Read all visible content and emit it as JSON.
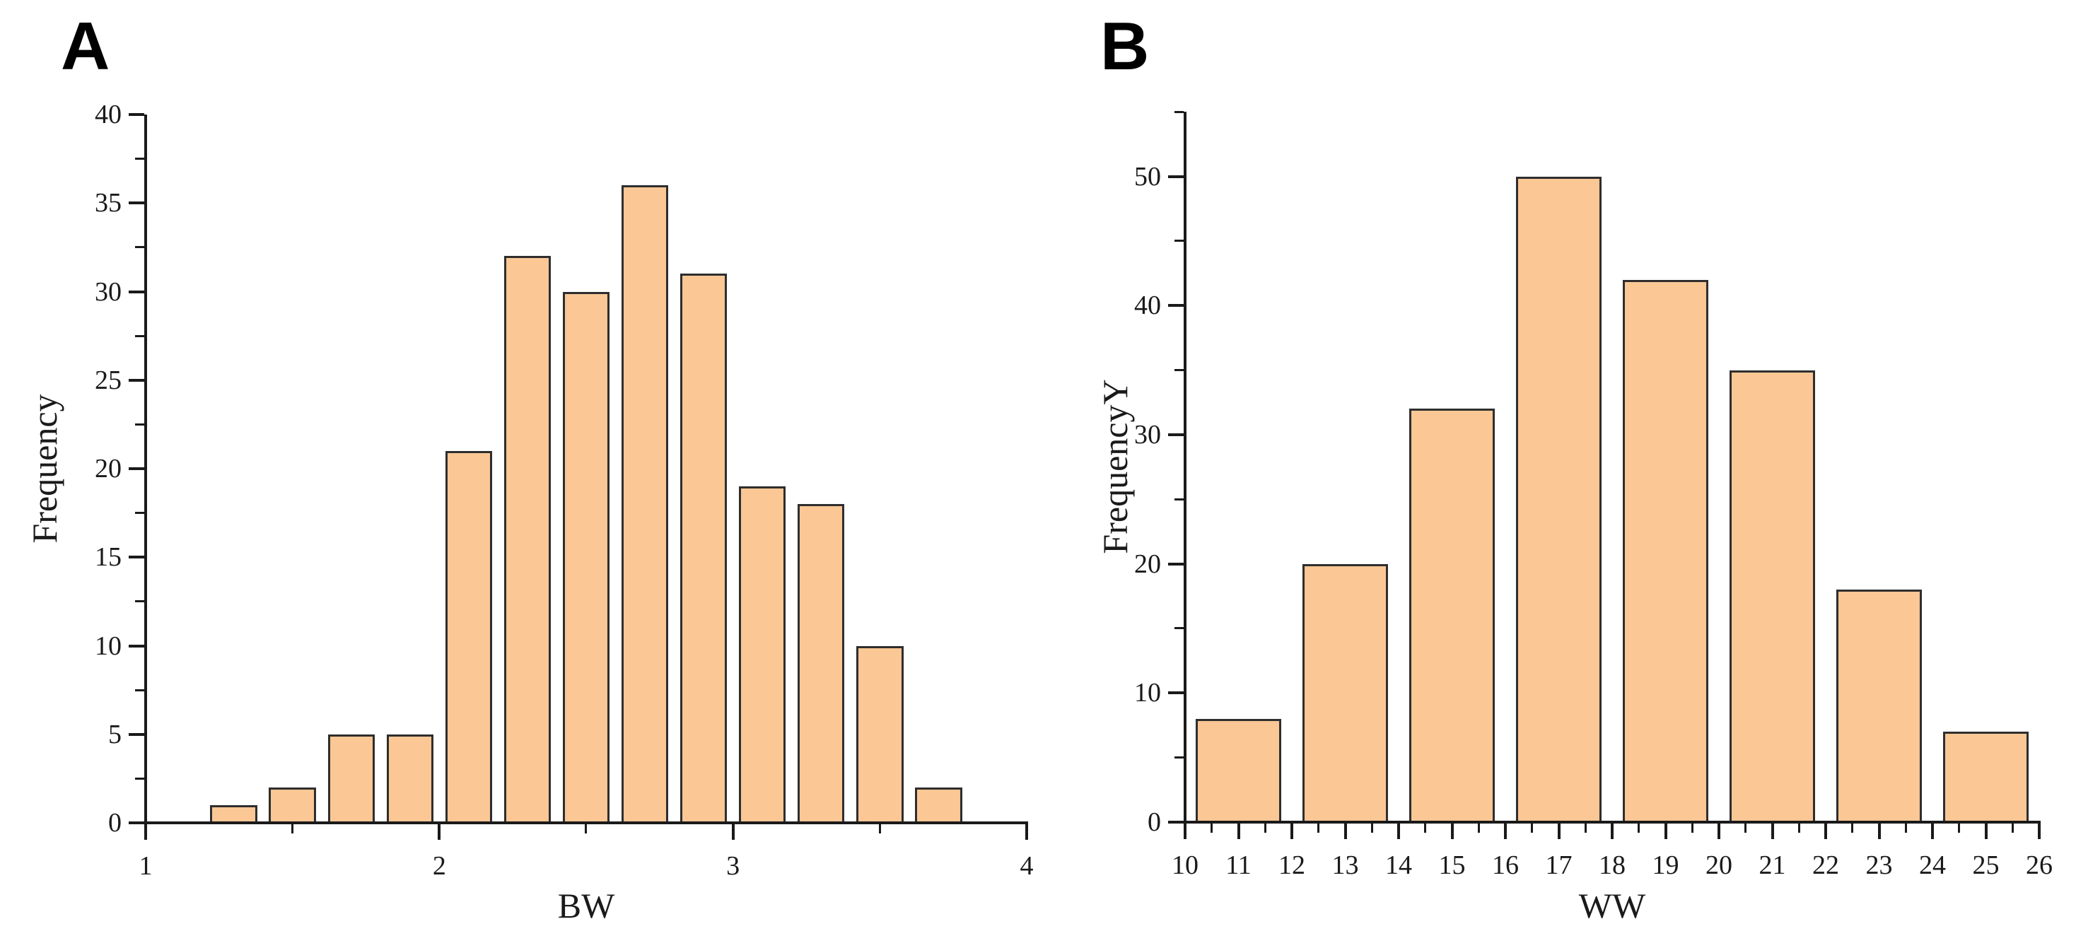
{
  "figure": {
    "background": "#ffffff",
    "description": "Two-panel histogram figure"
  },
  "colors": {
    "bar_fill": "#fac795",
    "bar_border": "#2e2e2e",
    "axis": "#1a1a1a",
    "text": "#1a1a1a",
    "background": "#ffffff"
  },
  "chart_data": [
    {
      "type": "bar",
      "subtype": "histogram",
      "panel_label": "A",
      "title": "",
      "xlabel": "BW",
      "ylabel": "Frequency",
      "x_min": 1,
      "x_max": 4,
      "y_min": 0,
      "y_max": 40,
      "x_major_tick_step": 1,
      "x_minor_tick_step": 0.5,
      "y_major_tick_step": 5,
      "y_minor_tick_step": 2.5,
      "x_tick_labels": [
        "1",
        "2",
        "3",
        "4"
      ],
      "y_tick_labels": [
        "0",
        "5",
        "10",
        "15",
        "20",
        "25",
        "30",
        "35",
        "40"
      ],
      "bin_start": 1.2,
      "bin_width": 0.2,
      "bar_width_fraction": 0.8,
      "bin_centers": [
        1.3,
        1.5,
        1.7,
        1.9,
        2.1,
        2.3,
        2.5,
        2.7,
        2.9,
        3.1,
        3.3,
        3.5,
        3.7
      ],
      "values": [
        1,
        2,
        5,
        5,
        21,
        32,
        30,
        36,
        31,
        19,
        18,
        10,
        2
      ],
      "grid": false,
      "legend": null
    },
    {
      "type": "bar",
      "subtype": "histogram",
      "panel_label": "B",
      "title": "",
      "xlabel": "WW",
      "ylabel": "FrequencyY",
      "x_min": 10,
      "x_max": 26,
      "y_min": 0,
      "y_max": 55,
      "x_major_tick_step": 1,
      "x_minor_tick_step": 0.5,
      "y_major_tick_step": 10,
      "y_minor_tick_step": 5,
      "x_tick_labels": [
        "10",
        "11",
        "12",
        "13",
        "14",
        "15",
        "16",
        "17",
        "18",
        "19",
        "20",
        "21",
        "22",
        "23",
        "24",
        "25",
        "26"
      ],
      "y_tick_labels": [
        "0",
        "10",
        "20",
        "30",
        "40",
        "50"
      ],
      "bin_start": 10,
      "bin_width": 2,
      "bar_width_fraction": 0.8,
      "bin_centers": [
        11,
        13,
        15,
        17,
        19,
        21,
        23,
        25
      ],
      "values": [
        8,
        20,
        32,
        50,
        42,
        35,
        18,
        7
      ],
      "grid": false,
      "legend": null
    }
  ]
}
